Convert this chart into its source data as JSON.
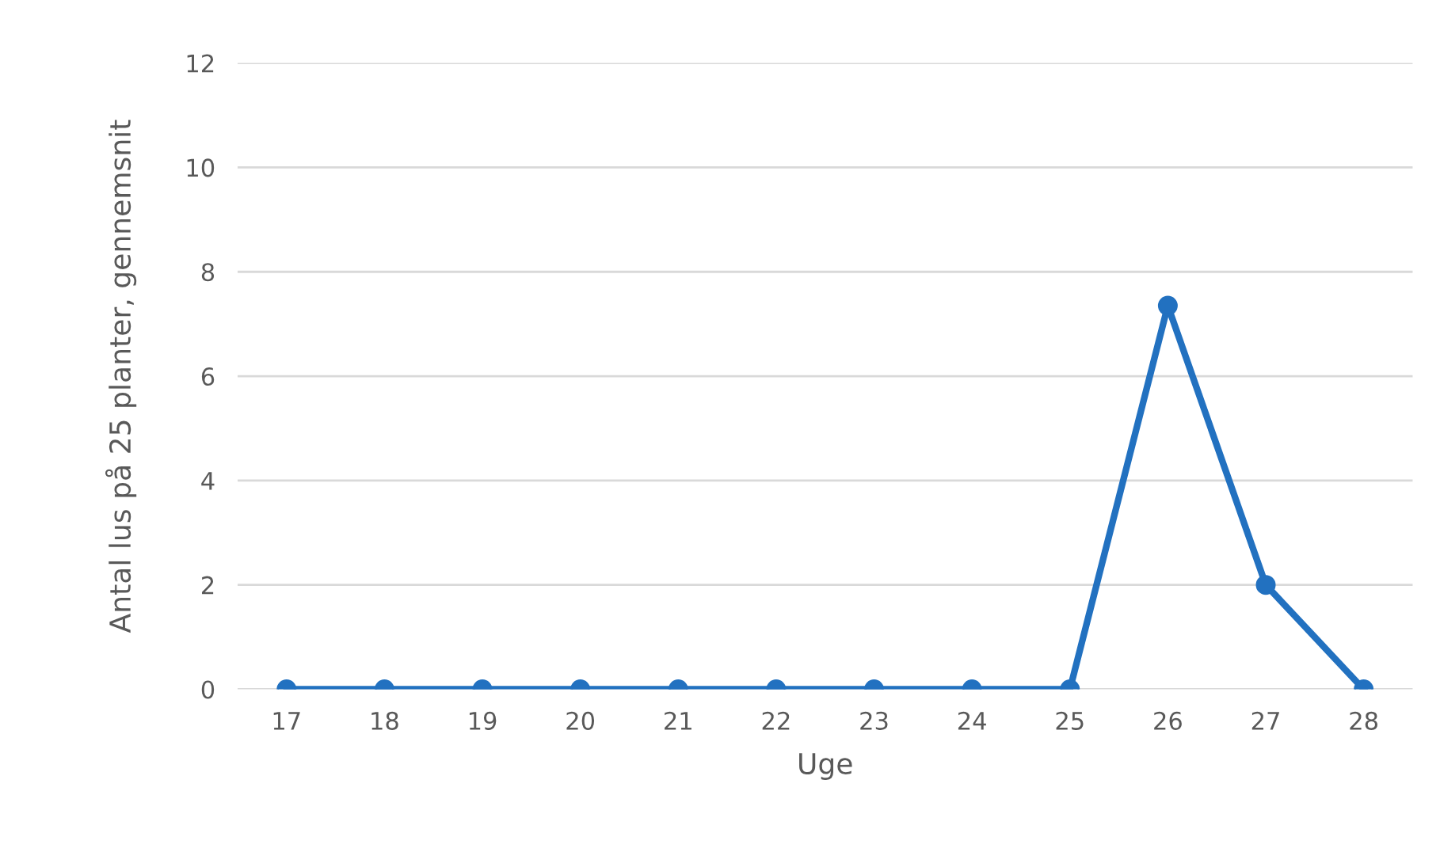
{
  "chart_data": {
    "type": "line",
    "xlabel": "Uge",
    "ylabel": "Antal lus på 25 planter, gennemsnit",
    "categories": [
      "17",
      "18",
      "19",
      "20",
      "21",
      "22",
      "23",
      "24",
      "25",
      "26",
      "27",
      "28"
    ],
    "series": [
      {
        "color": "#2271c0",
        "values": [
          0,
          0,
          0,
          0,
          0,
          0,
          0,
          0,
          0,
          7.35,
          2,
          0
        ]
      }
    ],
    "ylim": [
      0,
      12
    ],
    "yticks": [
      0,
      2,
      4,
      6,
      8,
      10,
      12
    ],
    "grid": "y",
    "marker": "circle",
    "line_style": "solid",
    "legend": false
  }
}
